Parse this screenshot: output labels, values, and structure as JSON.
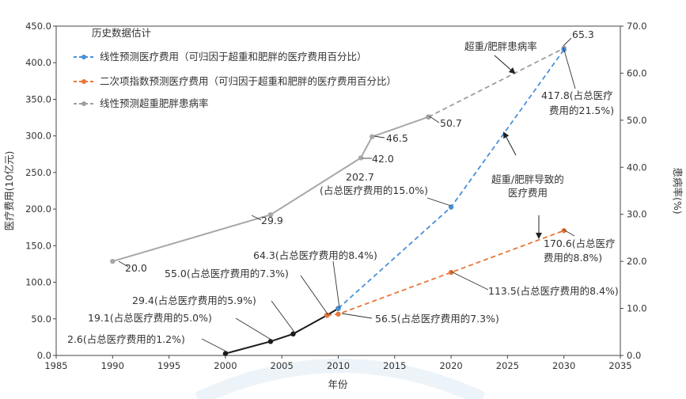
{
  "chart_data": {
    "type": "line",
    "xlabel": "年份",
    "ylabel_left": "医疗费用(10亿元)",
    "ylabel_right": "患病率(%)",
    "xlim": [
      1985,
      2035
    ],
    "x_ticks": [
      "1985",
      "1990",
      "1995",
      "2000",
      "2005",
      "2010",
      "2015",
      "2020",
      "2025",
      "2030",
      "2035"
    ],
    "ylim_left": [
      0,
      450
    ],
    "y_ticks_left": [
      "0.0",
      "50.0",
      "100.0",
      "150.0",
      "200.0",
      "250.0",
      "300.0",
      "350.0",
      "400.0",
      "450.0"
    ],
    "ylim_right": [
      0,
      70
    ],
    "y_ticks_right": [
      "0.0",
      "10.0",
      "20.0",
      "30.0",
      "40.0",
      "50.0",
      "60.0",
      "70.0"
    ],
    "legend_position": "top-left",
    "legend": {
      "header": "历史数据估计",
      "items": [
        {
          "label": "线性预测医疗费用（可归因于超重和肥胖的医疗费用百分比）",
          "color": "#4a90d9",
          "dashed": true
        },
        {
          "label": "二次项指数预测医疗费用（可归因于超重和肥胖的医疗费用百分比）",
          "color": "#e8773a",
          "dashed": true
        },
        {
          "label": "线性预测超重肥胖患病率",
          "color": "#9e9e9e",
          "dashed": true
        }
      ]
    },
    "series": [
      {
        "name": "历史数据估计",
        "axis": "right",
        "color": "#a8a8a8",
        "style": "solid",
        "points": [
          [
            1990,
            20.0
          ],
          [
            2004,
            29.9
          ],
          [
            2012,
            42.0
          ],
          [
            2013,
            46.5
          ],
          [
            2018,
            50.7
          ]
        ]
      },
      {
        "name": "线性预测超重肥胖患病率",
        "axis": "right",
        "color": "#9e9e9e",
        "style": "dashed",
        "points": [
          [
            2018,
            50.7
          ],
          [
            2030,
            65.3
          ]
        ]
      },
      {
        "name": "历史数据估计",
        "axis": "left",
        "color": "#1a1a1a",
        "style": "solid",
        "points": [
          [
            2000,
            2.6
          ],
          [
            2004,
            19.1
          ],
          [
            2006,
            29.4
          ],
          [
            2009,
            55.0
          ],
          [
            2010,
            64.3
          ]
        ]
      },
      {
        "name": "线性预测医疗费用（可归因于超重和肥胖的医疗费用百分比）",
        "axis": "left",
        "color": "#4a90d9",
        "style": "dashed",
        "points": [
          [
            2010,
            64.3
          ],
          [
            2020,
            202.7
          ],
          [
            2030,
            417.8
          ]
        ]
      },
      {
        "name": "二次项指数预测医疗费用（可归因于超重和肥胖的医疗费用百分比）",
        "axis": "left",
        "color": "#e8773a",
        "style": "dashed",
        "points": [
          [
            2009,
            55.0
          ],
          [
            2010,
            56.5
          ],
          [
            2020,
            113.5
          ],
          [
            2030,
            170.6
          ]
        ]
      }
    ],
    "annotations": {
      "p20": "20.0",
      "p299": "29.9",
      "p420": "42.0",
      "p465": "46.5",
      "p507": "50.7",
      "p653": "65.3",
      "c26": "2.6(占总医疗费用的1.2%)",
      "c191": "19.1(占总医疗费用的5.0%)",
      "c294": "29.4(占总医疗费用的5.9%)",
      "c550": "55.0(占总医疗费用的7.3%)",
      "c643": "64.3(占总医疗费用的8.4%)",
      "c565": "56.5(占总医疗费用的7.3%)",
      "c2027_l1": "202.7",
      "c2027_l2": "(占总医疗费用的15.0%)",
      "c1135": "113.5(占总医疗费用的8.4%)",
      "c4178_l1": "417.8(占总医疗",
      "c4178_l2": "费用的21.5%)",
      "c1706_l1": "170.6(占总医疗",
      "c1706_l2": "费用的8.8%)",
      "prev_label": "超重/肥胖患病率",
      "cost_label_l1": "超重/肥胖导致的",
      "cost_label_l2": "医疗费用"
    }
  }
}
